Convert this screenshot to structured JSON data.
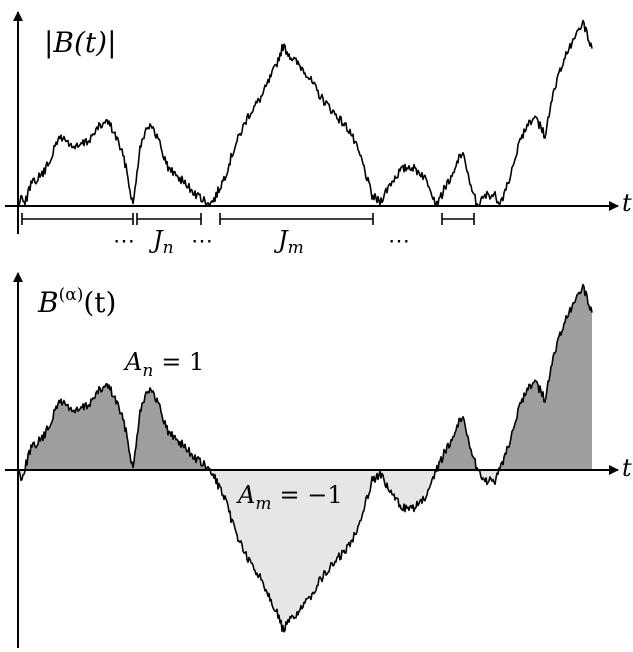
{
  "top_panel": {
    "label": "|B(t)|",
    "axis_label": "t",
    "intervals": [
      "J",
      "n",
      "J",
      "m"
    ],
    "ellipses": [
      "⋯",
      "⋯",
      "⋯"
    ]
  },
  "bottom_panel": {
    "label_base": "B",
    "label_sup": "(α)",
    "label_arg": "(t)",
    "axis_label": "t",
    "positive_area_label": {
      "var": "A",
      "sub": "n",
      "eq": "= 1"
    },
    "negative_area_label": {
      "var": "A",
      "sub": "m",
      "eq": "= −1"
    }
  },
  "colors": {
    "positive_fill": "#9e9e9e",
    "negative_fill": "#e6e6e6",
    "stroke": "#000000"
  }
}
